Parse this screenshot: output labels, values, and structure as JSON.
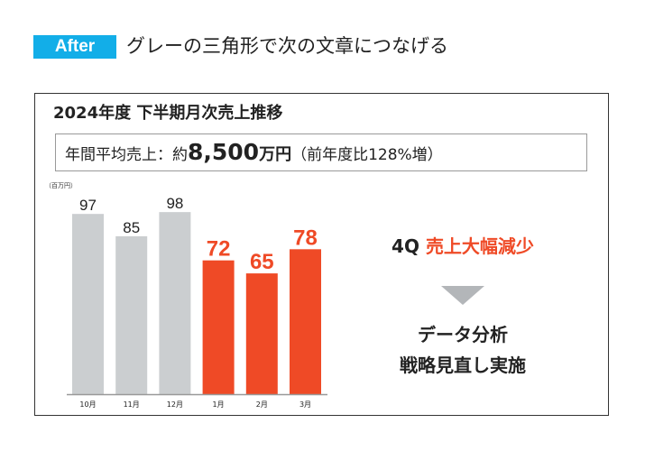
{
  "header": {
    "badge": "After",
    "headline": "グレーの三角形で次の文章につなげる"
  },
  "card": {
    "title": "2024年度 下半期月次売上推移",
    "summary": {
      "label": "年間平均売上：約",
      "value": "8,500",
      "unit": "万円",
      "note": "（前年度比128%増）"
    }
  },
  "chart_data": {
    "type": "bar",
    "unit_label": "（百万円）",
    "categories": [
      "10月",
      "11月",
      "12月",
      "1月",
      "2月",
      "3月"
    ],
    "values": [
      97,
      85,
      98,
      72,
      65,
      78
    ],
    "colors": [
      "#cbced0",
      "#cbced0",
      "#cbced0",
      "#ef4a26",
      "#ef4a26",
      "#ef4a26"
    ],
    "label_colors": [
      "#222222",
      "#222222",
      "#222222",
      "#ef4a26",
      "#ef4a26",
      "#ef4a26"
    ],
    "ylim": [
      0,
      100
    ],
    "grid": false
  },
  "message": {
    "prefix": "4Q ",
    "accent": "売上大幅減少",
    "accent_color": "#ef4a26"
  },
  "arrow": {
    "icon": "down-triangle-icon",
    "color": "#b3b6b9"
  },
  "conclusion": {
    "line1": "データ分析",
    "line2": "戦略見直し実施"
  }
}
